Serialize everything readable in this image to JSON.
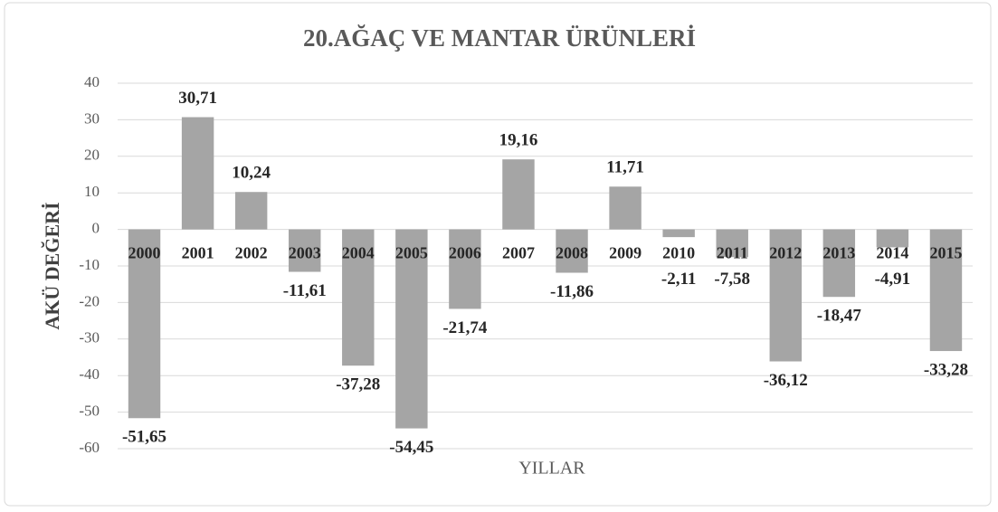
{
  "chart_data": {
    "type": "bar",
    "title": "20.AĞAÇ VE MANTAR ÜRÜNLERİ",
    "x_label": "YILLAR",
    "y_label": "AKÜ DEĞERİ",
    "categories": [
      "2000",
      "2001",
      "2002",
      "2003",
      "2004",
      "2005",
      "2006",
      "2007",
      "2008",
      "2009",
      "2010",
      "2011",
      "2012",
      "2013",
      "2014",
      "2015"
    ],
    "values": [
      -51.65,
      30.71,
      10.24,
      -11.61,
      -37.28,
      -54.45,
      -21.74,
      19.16,
      -11.86,
      11.71,
      -2.11,
      -7.58,
      -36.12,
      -18.47,
      -4.91,
      -33.28
    ],
    "value_labels": [
      "-51,65",
      "30,71",
      "10,24",
      "-11,61",
      "-37,28",
      "-54,45",
      "-21,74",
      "19,16",
      "-11,86",
      "11,71",
      "-2,11",
      "-7,58",
      "-36,12",
      "-18,47",
      "-4,91",
      "-33,28"
    ],
    "color": "#a5a5a5",
    "ylim": [
      -60,
      40
    ],
    "yticks": [
      -60,
      -50,
      -40,
      -30,
      -20,
      -10,
      0,
      10,
      20,
      30,
      40
    ],
    "grid": true
  }
}
